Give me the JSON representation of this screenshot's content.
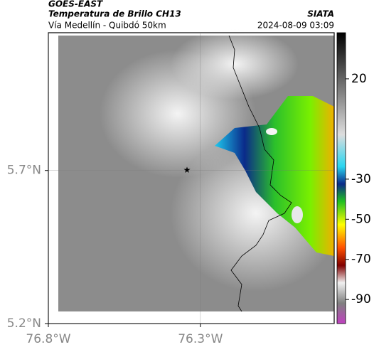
{
  "header": {
    "source": "GOES-EAST",
    "title": "Temperatura de Brillo CH13",
    "agency": "SIATA",
    "subtitle": "Vía Medellín - Quibdó 50km",
    "timestamp": "2024-08-09 03:09"
  },
  "map": {
    "xlim": [
      -76.8,
      -75.86
    ],
    "ylim": [
      5.2,
      6.15
    ],
    "xticks": [
      {
        "value": -76.8,
        "label": "76.8°W"
      },
      {
        "value": -76.3,
        "label": "76.3°W"
      }
    ],
    "yticks": [
      {
        "value": 5.2,
        "label": "5.2°N"
      },
      {
        "value": 5.7,
        "label": "5.7°N"
      }
    ],
    "grid": true,
    "marker": {
      "lon": -76.344,
      "lat": 5.7
    },
    "colorbar": {
      "lim": [
        -102,
        43
      ],
      "ticks": [
        20,
        -30,
        -50,
        -70,
        -90
      ]
    }
  }
}
